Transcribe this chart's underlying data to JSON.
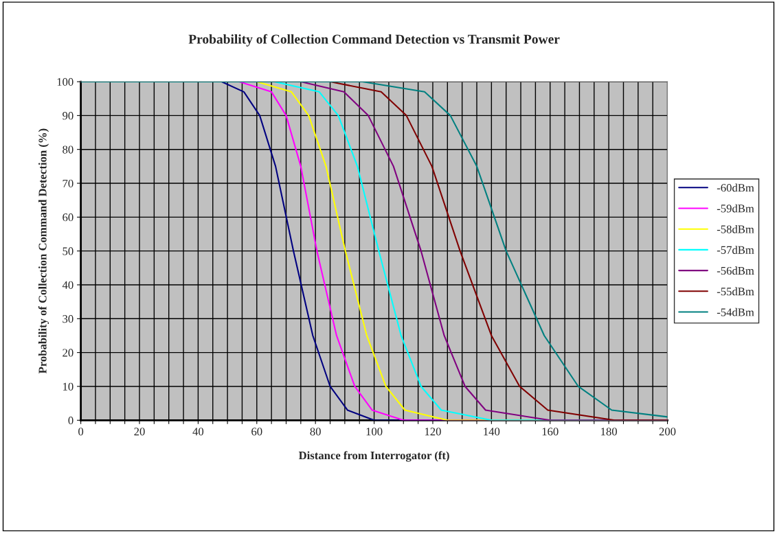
{
  "chart_data": {
    "type": "line",
    "title": "Probability of Collection Command Detection vs Transmit Power",
    "xlabel": "Distance from Interrogator (ft)",
    "ylabel": "Probability of Collection Command Detection (%)",
    "xlim": [
      0,
      200
    ],
    "ylim": [
      0,
      100
    ],
    "xticks": [
      0,
      {
        "value": 5,
        "label": null
      },
      {
        "value": 10,
        "label": null
      },
      {
        "value": 15,
        "label": null
      },
      20,
      {
        "value": 25,
        "label": null
      },
      {
        "value": 30,
        "label": null
      },
      {
        "value": 35,
        "label": null
      },
      40,
      {
        "value": 45,
        "label": null
      },
      {
        "value": 50,
        "label": null
      },
      {
        "value": 55,
        "label": null
      },
      60,
      {
        "value": 65,
        "label": null
      },
      {
        "value": 70,
        "label": null
      },
      {
        "value": 75,
        "label": null
      },
      80,
      {
        "value": 85,
        "label": null
      },
      {
        "value": 90,
        "label": null
      },
      {
        "value": 95,
        "label": null
      },
      100,
      {
        "value": 105,
        "label": null
      },
      {
        "value": 110,
        "label": null
      },
      {
        "value": 115,
        "label": null
      },
      120,
      {
        "value": 125,
        "label": null
      },
      {
        "value": 130,
        "label": null
      },
      {
        "value": 135,
        "label": null
      },
      140,
      {
        "value": 145,
        "label": null
      },
      {
        "value": 150,
        "label": null
      },
      {
        "value": 155,
        "label": null
      },
      160,
      {
        "value": 165,
        "label": null
      },
      {
        "value": 170,
        "label": null
      },
      {
        "value": 175,
        "label": null
      },
      180,
      {
        "value": 185,
        "label": null
      },
      {
        "value": 190,
        "label": null
      },
      {
        "value": 195,
        "label": null
      },
      200
    ],
    "yticks": [
      0,
      10,
      20,
      30,
      40,
      50,
      60,
      70,
      80,
      90,
      100
    ],
    "grid": true,
    "legend": "right",
    "marker": "none",
    "line_style": "solid",
    "series": [
      {
        "name": "-60dBm",
        "color": "#000080",
        "x": [
          0,
          48,
          55.6,
          61,
          66.4,
          72.5,
          79.1,
          85,
          90.9,
          100,
          200
        ],
        "values": [
          100,
          100,
          97,
          90,
          75,
          50,
          25,
          10,
          3,
          0,
          0
        ]
      },
      {
        "name": "-59dBm",
        "color": "#ff00ff",
        "x": [
          0,
          54,
          65,
          70,
          75,
          80.5,
          87.2,
          93.4,
          99.3,
          110,
          200
        ],
        "values": [
          100,
          100,
          97,
          90,
          75,
          50,
          25,
          10,
          3,
          0,
          0
        ]
      },
      {
        "name": "-58dBm",
        "color": "#ffff00",
        "x": [
          0,
          60,
          71.8,
          77.7,
          83.6,
          90.2,
          97.5,
          104,
          110.5,
          125,
          200
        ],
        "values": [
          100,
          100,
          97,
          90,
          75,
          50,
          25,
          10,
          3,
          0,
          0
        ]
      },
      {
        "name": "-57dBm",
        "color": "#00ffff",
        "x": [
          0,
          66,
          81.3,
          87.8,
          94.3,
          101.6,
          109.2,
          116,
          122.9,
          140,
          200
        ],
        "values": [
          100,
          100,
          97,
          90,
          75,
          50,
          25,
          10,
          3,
          0,
          0
        ]
      },
      {
        "name": "-56dBm",
        "color": "#800080",
        "x": [
          0,
          75,
          89.7,
          98,
          106.6,
          116,
          123.9,
          131,
          138,
          160,
          200
        ],
        "values": [
          100,
          100,
          97,
          90,
          75,
          50,
          25,
          10,
          3,
          0,
          0
        ]
      },
      {
        "name": "-55dBm",
        "color": "#800000",
        "x": [
          0,
          85,
          102.4,
          111,
          119.7,
          129.3,
          140,
          149.6,
          159.2,
          182,
          200
        ],
        "values": [
          100,
          100,
          97,
          90,
          75,
          50,
          25,
          10,
          3,
          0,
          0
        ]
      },
      {
        "name": "-54dBm",
        "color": "#008080",
        "x": [
          0,
          96,
          117.2,
          126,
          135,
          145,
          158,
          169.6,
          181,
          200
        ],
        "values": [
          100,
          100,
          97,
          90,
          75,
          50,
          25,
          10,
          3,
          1
        ]
      }
    ]
  }
}
